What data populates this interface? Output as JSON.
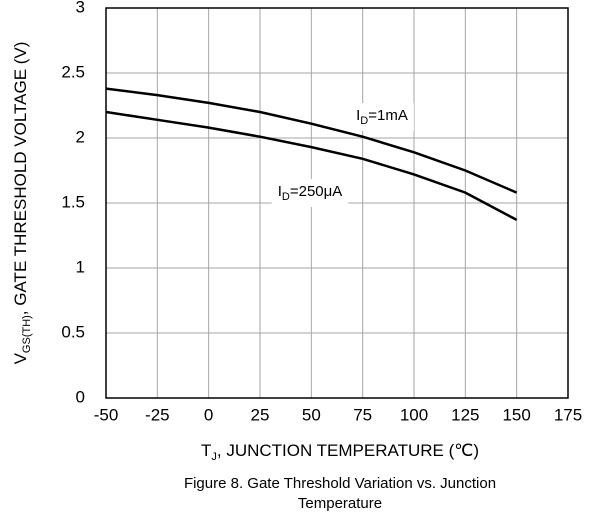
{
  "chart_data": {
    "type": "line",
    "x_label": {
      "main": "T",
      "sub": "J",
      "rest": ", JUNCTION TEMPERATURE (℃)"
    },
    "y_label": {
      "main": "V",
      "sub": "GS(TH)",
      "rest": ", GATE THRESHOLD VOLTAGE (V)"
    },
    "caption": [
      "Figure 8. Gate Threshold Variation vs. Junction",
      "Temperature"
    ],
    "x": [
      -50,
      -25,
      0,
      25,
      50,
      75,
      100,
      125,
      150
    ],
    "series": [
      {
        "name": {
          "main": "I",
          "sub": "D",
          "rest": "=1mA"
        },
        "color": "#000000",
        "values": [
          2.38,
          2.33,
          2.27,
          2.2,
          2.11,
          2.01,
          1.89,
          1.75,
          1.58
        ]
      },
      {
        "name": {
          "main": "I",
          "sub": "D",
          "rest": "=250μA"
        },
        "color": "#000000",
        "values": [
          2.2,
          2.14,
          2.08,
          2.01,
          1.93,
          1.84,
          1.72,
          1.58,
          1.37
        ]
      }
    ],
    "xlim": [
      -50,
      175
    ],
    "xticks": [
      -50,
      -25,
      0,
      25,
      50,
      75,
      100,
      125,
      150,
      175
    ],
    "ylim": [
      0,
      3
    ],
    "yticks": [
      0,
      0.5,
      1,
      1.5,
      2,
      2.5,
      3
    ],
    "grid": true
  }
}
